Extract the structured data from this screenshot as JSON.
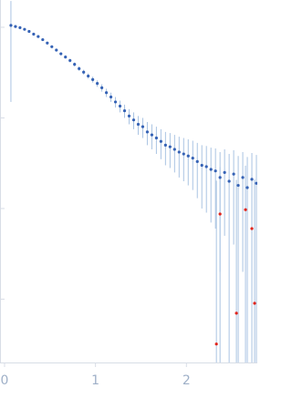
{
  "chart_data": {
    "type": "scatter",
    "xlim": [
      -0.05,
      2.78
    ],
    "xticks": [
      0,
      1,
      2
    ],
    "ylim": [
      0.0002,
      2
    ],
    "yscale": "log",
    "ytick_marks": [
      0.001,
      0.01,
      0.1,
      1
    ],
    "series": [
      {
        "color": "#3562b5",
        "error_color": "#a9c3e2",
        "x": [
          0.07,
          0.12,
          0.17,
          0.22,
          0.27,
          0.32,
          0.37,
          0.42,
          0.47,
          0.52,
          0.57,
          0.62,
          0.67,
          0.72,
          0.77,
          0.82,
          0.87,
          0.92,
          0.97,
          1.02,
          1.07,
          1.12,
          1.17,
          1.22,
          1.27,
          1.32,
          1.37,
          1.42,
          1.47,
          1.52,
          1.57,
          1.62,
          1.67,
          1.72,
          1.77,
          1.82,
          1.87,
          1.92,
          1.97,
          2.02,
          2.07,
          2.12,
          2.17,
          2.22,
          2.27,
          2.32,
          2.37,
          2.42,
          2.47,
          2.52,
          2.57,
          2.62,
          2.67,
          2.72,
          2.77
        ],
        "values": [
          1.05,
          1.02,
          0.99,
          0.95,
          0.9,
          0.84,
          0.79,
          0.73,
          0.67,
          0.61,
          0.56,
          0.51,
          0.47,
          0.43,
          0.39,
          0.35,
          0.32,
          0.29,
          0.265,
          0.24,
          0.215,
          0.19,
          0.17,
          0.15,
          0.135,
          0.12,
          0.105,
          0.095,
          0.085,
          0.08,
          0.07,
          0.065,
          0.06,
          0.055,
          0.05,
          0.048,
          0.045,
          0.042,
          0.04,
          0.038,
          0.036,
          0.033,
          0.03,
          0.029,
          0.027,
          0.026,
          0.022,
          0.025,
          0.02,
          0.024,
          0.018,
          0.022,
          0.017,
          0.021,
          0.019
        ],
        "errors": [
          0.9,
          0.02,
          0.02,
          0.02,
          0.02,
          0.02,
          0.02,
          0.02,
          0.02,
          0.02,
          0.02,
          0.02,
          0.02,
          0.02,
          0.02,
          0.02,
          0.02,
          0.02,
          0.02,
          0.02,
          0.02,
          0.02,
          0.02,
          0.02,
          0.02,
          0.02,
          0.02,
          0.02,
          0.02,
          0.02,
          0.02,
          0.02,
          0.02,
          0.02,
          0.02,
          0.02,
          0.02,
          0.02,
          0.02,
          0.02,
          0.02,
          0.02,
          0.02,
          0.02,
          0.02,
          0.02,
          0.02,
          0.02,
          0.02,
          0.02,
          0.02,
          0.02,
          0.02,
          0.02,
          0.02
        ]
      },
      {
        "color": "#e0241b",
        "error_color": "#a9c3e2",
        "x": [
          2.33,
          2.37,
          2.55,
          2.65,
          2.72,
          2.75
        ],
        "values": [
          0.00032,
          0.0087,
          0.0007,
          0.0097,
          0.006,
          0.0009
        ],
        "errors": [
          0.02,
          0.02,
          0.02,
          0.02,
          0.02,
          0.02
        ]
      }
    ]
  }
}
